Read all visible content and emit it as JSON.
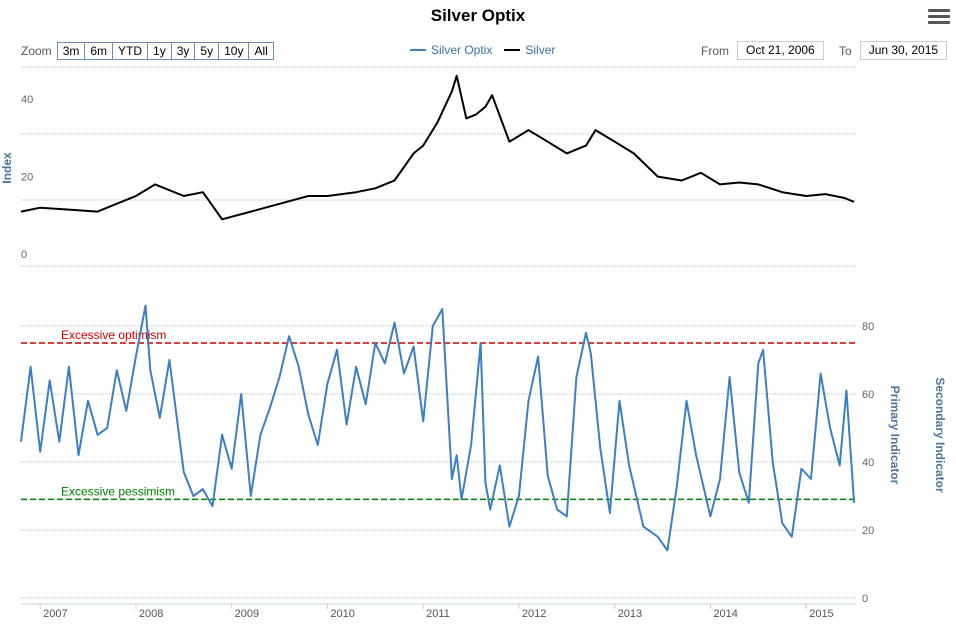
{
  "title": "Silver Optix",
  "menu": {
    "icon": "hamburger-menu-icon"
  },
  "zoom": {
    "label": "Zoom",
    "buttons": [
      "3m",
      "6m",
      "YTD",
      "1y",
      "3y",
      "5y",
      "10y",
      "All"
    ]
  },
  "legend": [
    {
      "label": "Silver Optix",
      "color": "#3d7fc2"
    },
    {
      "label": "Silver",
      "color": "#000000"
    }
  ],
  "range": {
    "from_label": "From",
    "from_value": "Oct 21, 2006",
    "to_label": "To",
    "to_value": "Jun 30, 2015"
  },
  "colors": {
    "optix": "#3d7fc2",
    "silver": "#000000",
    "optimism": "#cc0000",
    "pessimism": "#008000"
  },
  "chart_data": [
    {
      "type": "line",
      "title": "",
      "ylabel": "Index",
      "ylim": [
        0,
        50
      ],
      "yticks": [
        0,
        20,
        40
      ],
      "grid": true,
      "series": [
        {
          "name": "Silver",
          "x": [
            2006.8,
            2007.0,
            2007.3,
            2007.6,
            2008.0,
            2008.2,
            2008.5,
            2008.7,
            2008.9,
            2009.2,
            2009.5,
            2009.8,
            2010.0,
            2010.3,
            2010.5,
            2010.7,
            2010.9,
            2011.0,
            2011.15,
            2011.3,
            2011.35,
            2011.45,
            2011.55,
            2011.65,
            2011.72,
            2011.9,
            2012.1,
            2012.3,
            2012.5,
            2012.7,
            2012.8,
            2013.0,
            2013.2,
            2013.45,
            2013.7,
            2013.9,
            2014.1,
            2014.3,
            2014.5,
            2014.75,
            2015.0,
            2015.2,
            2015.4,
            2015.5
          ],
          "values": [
            13,
            14,
            13.5,
            13,
            17,
            20,
            17,
            18,
            11,
            13,
            15,
            17,
            17,
            18,
            19,
            21,
            28,
            30,
            36,
            44,
            48,
            37,
            38,
            40,
            43,
            31,
            34,
            31,
            28,
            30,
            34,
            31,
            28,
            22,
            21,
            23,
            20,
            20.5,
            20,
            18,
            17,
            17.5,
            16.5,
            15.5
          ]
        }
      ]
    },
    {
      "type": "line",
      "title": "",
      "ylabel": "Primary Indicator",
      "y2label": "Secondary Indicator",
      "ylim": [
        0,
        85
      ],
      "yticks": [
        0,
        20,
        40,
        60,
        80
      ],
      "xticks": [
        "2007",
        "2008",
        "2009",
        "2010",
        "2011",
        "2012",
        "2013",
        "2014",
        "2015"
      ],
      "grid": true,
      "reference_lines": [
        {
          "label": "Excessive optimism",
          "value": 75
        },
        {
          "label": "Excessive pessimism",
          "value": 29
        }
      ],
      "series": [
        {
          "name": "Silver Optix",
          "x": [
            2006.8,
            2006.9,
            2007.0,
            2007.1,
            2007.2,
            2007.3,
            2007.4,
            2007.5,
            2007.6,
            2007.7,
            2007.8,
            2007.9,
            2008.0,
            2008.1,
            2008.15,
            2008.25,
            2008.35,
            2008.5,
            2008.6,
            2008.7,
            2008.8,
            2008.9,
            2009.0,
            2009.1,
            2009.2,
            2009.3,
            2009.4,
            2009.5,
            2009.6,
            2009.7,
            2009.8,
            2009.9,
            2010.0,
            2010.1,
            2010.2,
            2010.3,
            2010.4,
            2010.5,
            2010.6,
            2010.7,
            2010.8,
            2010.9,
            2011.0,
            2011.1,
            2011.2,
            2011.3,
            2011.35,
            2011.4,
            2011.5,
            2011.6,
            2011.65,
            2011.7,
            2011.8,
            2011.9,
            2012.0,
            2012.1,
            2012.2,
            2012.3,
            2012.4,
            2012.5,
            2012.6,
            2012.7,
            2012.75,
            2012.85,
            2012.95,
            2013.05,
            2013.15,
            2013.3,
            2013.45,
            2013.55,
            2013.65,
            2013.75,
            2013.85,
            2014.0,
            2014.1,
            2014.2,
            2014.3,
            2014.4,
            2014.5,
            2014.55,
            2014.65,
            2014.75,
            2014.85,
            2014.95,
            2015.05,
            2015.15,
            2015.25,
            2015.35,
            2015.42,
            2015.5
          ],
          "values": [
            46,
            68,
            43,
            64,
            46,
            68,
            42,
            58,
            48,
            50,
            67,
            55,
            71,
            86,
            67,
            53,
            70,
            37,
            30,
            32,
            27,
            48,
            38,
            60,
            30,
            48,
            56,
            65,
            77,
            68,
            54,
            45,
            63,
            73,
            51,
            68,
            57,
            75,
            69,
            81,
            66,
            74,
            52,
            80,
            85,
            35,
            42,
            29,
            45,
            75,
            34,
            26,
            39,
            21,
            30,
            58,
            71,
            36,
            26,
            24,
            65,
            78,
            72,
            44,
            25,
            58,
            39,
            21,
            18,
            14,
            33,
            58,
            42,
            24,
            35,
            65,
            37,
            28,
            69,
            73,
            40,
            22,
            18,
            38,
            35,
            66,
            50,
            39,
            61,
            28
          ]
        }
      ]
    }
  ]
}
